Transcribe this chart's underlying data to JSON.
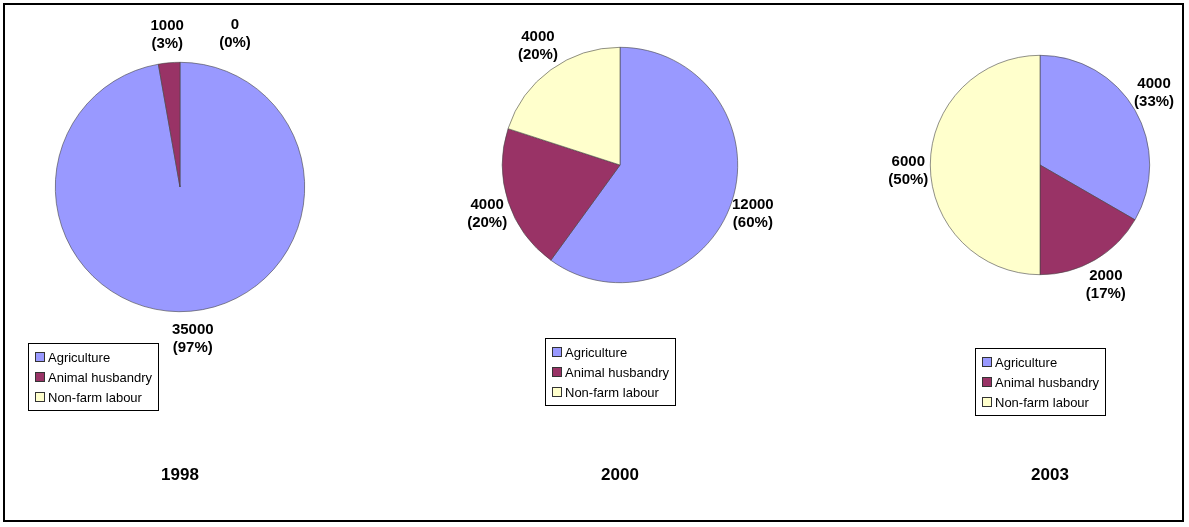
{
  "chart_data": [
    {
      "type": "pie",
      "title": "1998",
      "categories": [
        "Agriculture",
        "Animal husbandry",
        "Non-farm labour"
      ],
      "values": [
        35000,
        1000,
        0
      ],
      "colors": [
        "#9999ff",
        "#993366",
        "#ffffcc"
      ],
      "value_labels": [
        "35000 (97%)",
        "1000 (3%)",
        "0 (0%)"
      ],
      "legend": "bottom"
    },
    {
      "type": "pie",
      "title": "2000",
      "categories": [
        "Agriculture",
        "Animal husbandry",
        "Non-farm labour"
      ],
      "values": [
        12000,
        4000,
        4000
      ],
      "colors": [
        "#9999ff",
        "#993366",
        "#ffffcc"
      ],
      "value_labels": [
        "12000 (60%)",
        "4000 (20%)",
        "4000 (20%)"
      ],
      "legend": "bottom"
    },
    {
      "type": "pie",
      "title": "2003",
      "categories": [
        "Agriculture",
        "Animal husbandry",
        "Non-farm labour"
      ],
      "values": [
        4000,
        2000,
        6000
      ],
      "colors": [
        "#9999ff",
        "#993366",
        "#ffffcc"
      ],
      "value_labels": [
        "4000 (33%)",
        "2000 (17%)",
        "6000 (50%)"
      ],
      "legend": "bottom"
    }
  ]
}
